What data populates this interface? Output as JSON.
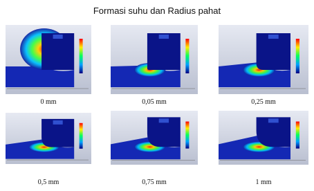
{
  "title": "Formasi suhu dan Radius pahat",
  "panels": [
    {
      "caption": "0 mm"
    },
    {
      "caption": "0,05 mm"
    },
    {
      "caption": "0,25 mm"
    },
    {
      "caption": "0,5 mm"
    },
    {
      "caption": "0,75 mm"
    },
    {
      "caption": "1 mm"
    }
  ]
}
